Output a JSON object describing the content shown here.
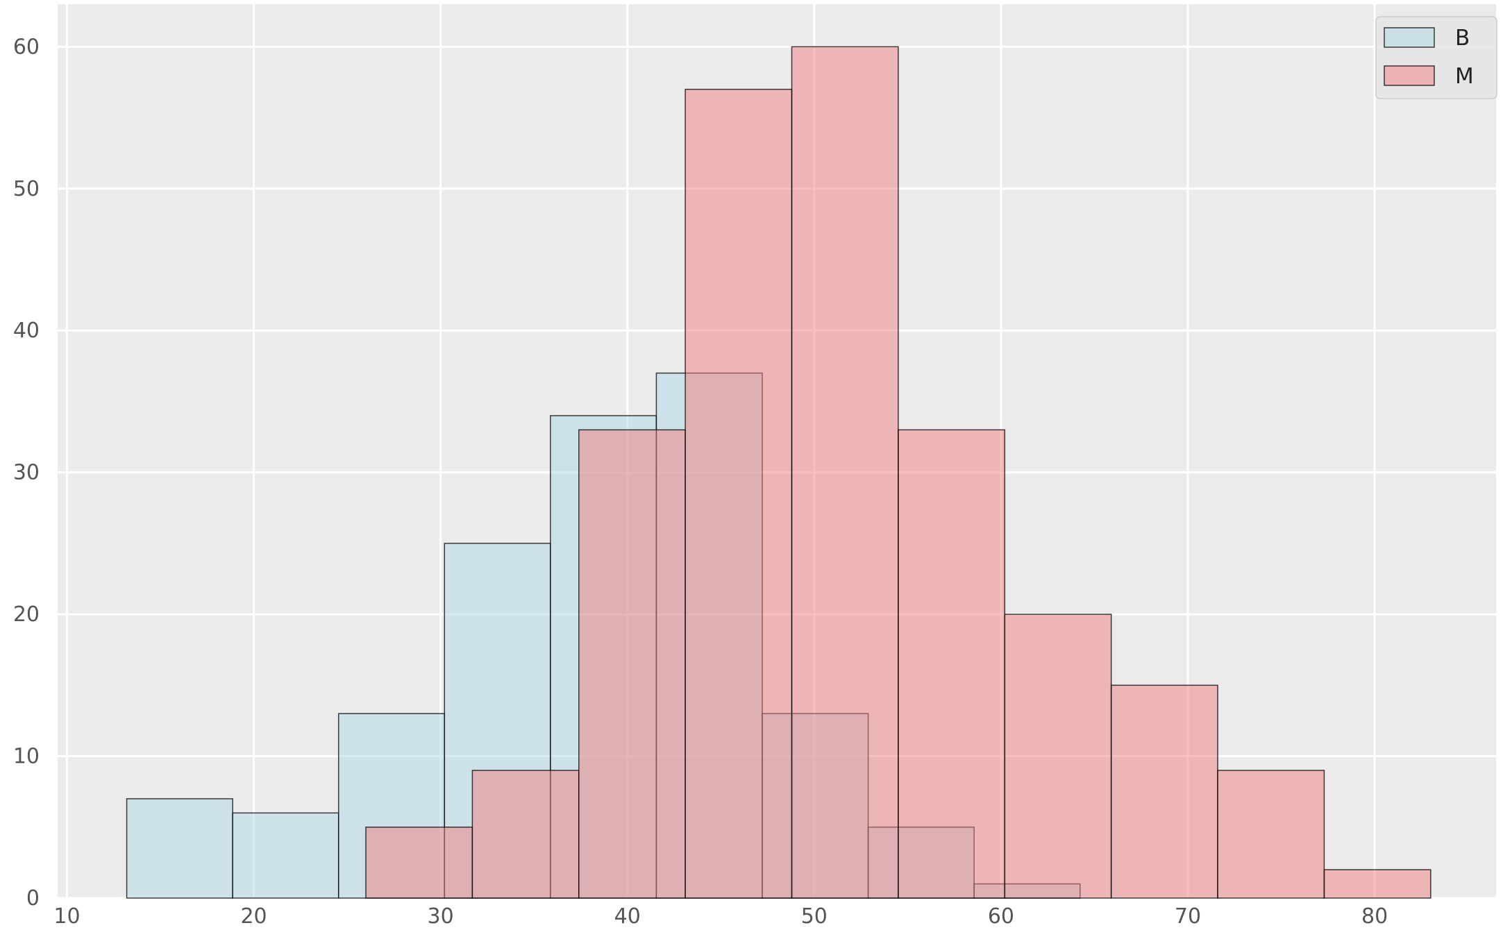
{
  "chart_data": {
    "type": "histogram",
    "title": "",
    "xlabel": "",
    "ylabel": "",
    "xlim": [
      9.5,
      86.5
    ],
    "ylim": [
      0,
      63
    ],
    "x_ticks": [
      10,
      20,
      30,
      40,
      50,
      60,
      70,
      80
    ],
    "y_ticks": [
      0,
      10,
      20,
      30,
      40,
      50,
      60
    ],
    "grid": true,
    "legend_position": "top-right",
    "series": [
      {
        "name": "B",
        "color": "#add8e6",
        "bin_edges": [
          13.2,
          18.87,
          24.54,
          30.21,
          35.88,
          41.55,
          47.22,
          52.89,
          58.56,
          64.23,
          69.9
        ],
        "counts": [
          7,
          6,
          13,
          25,
          34,
          37,
          13,
          5,
          1,
          0
        ]
      },
      {
        "name": "M",
        "color": "#f08080",
        "bin_edges": [
          26.0,
          31.7,
          37.4,
          43.1,
          48.8,
          54.5,
          60.2,
          65.9,
          71.6,
          77.3,
          83.0
        ],
        "counts": [
          5,
          9,
          33,
          57,
          60,
          33,
          20,
          15,
          9,
          2
        ]
      }
    ]
  }
}
